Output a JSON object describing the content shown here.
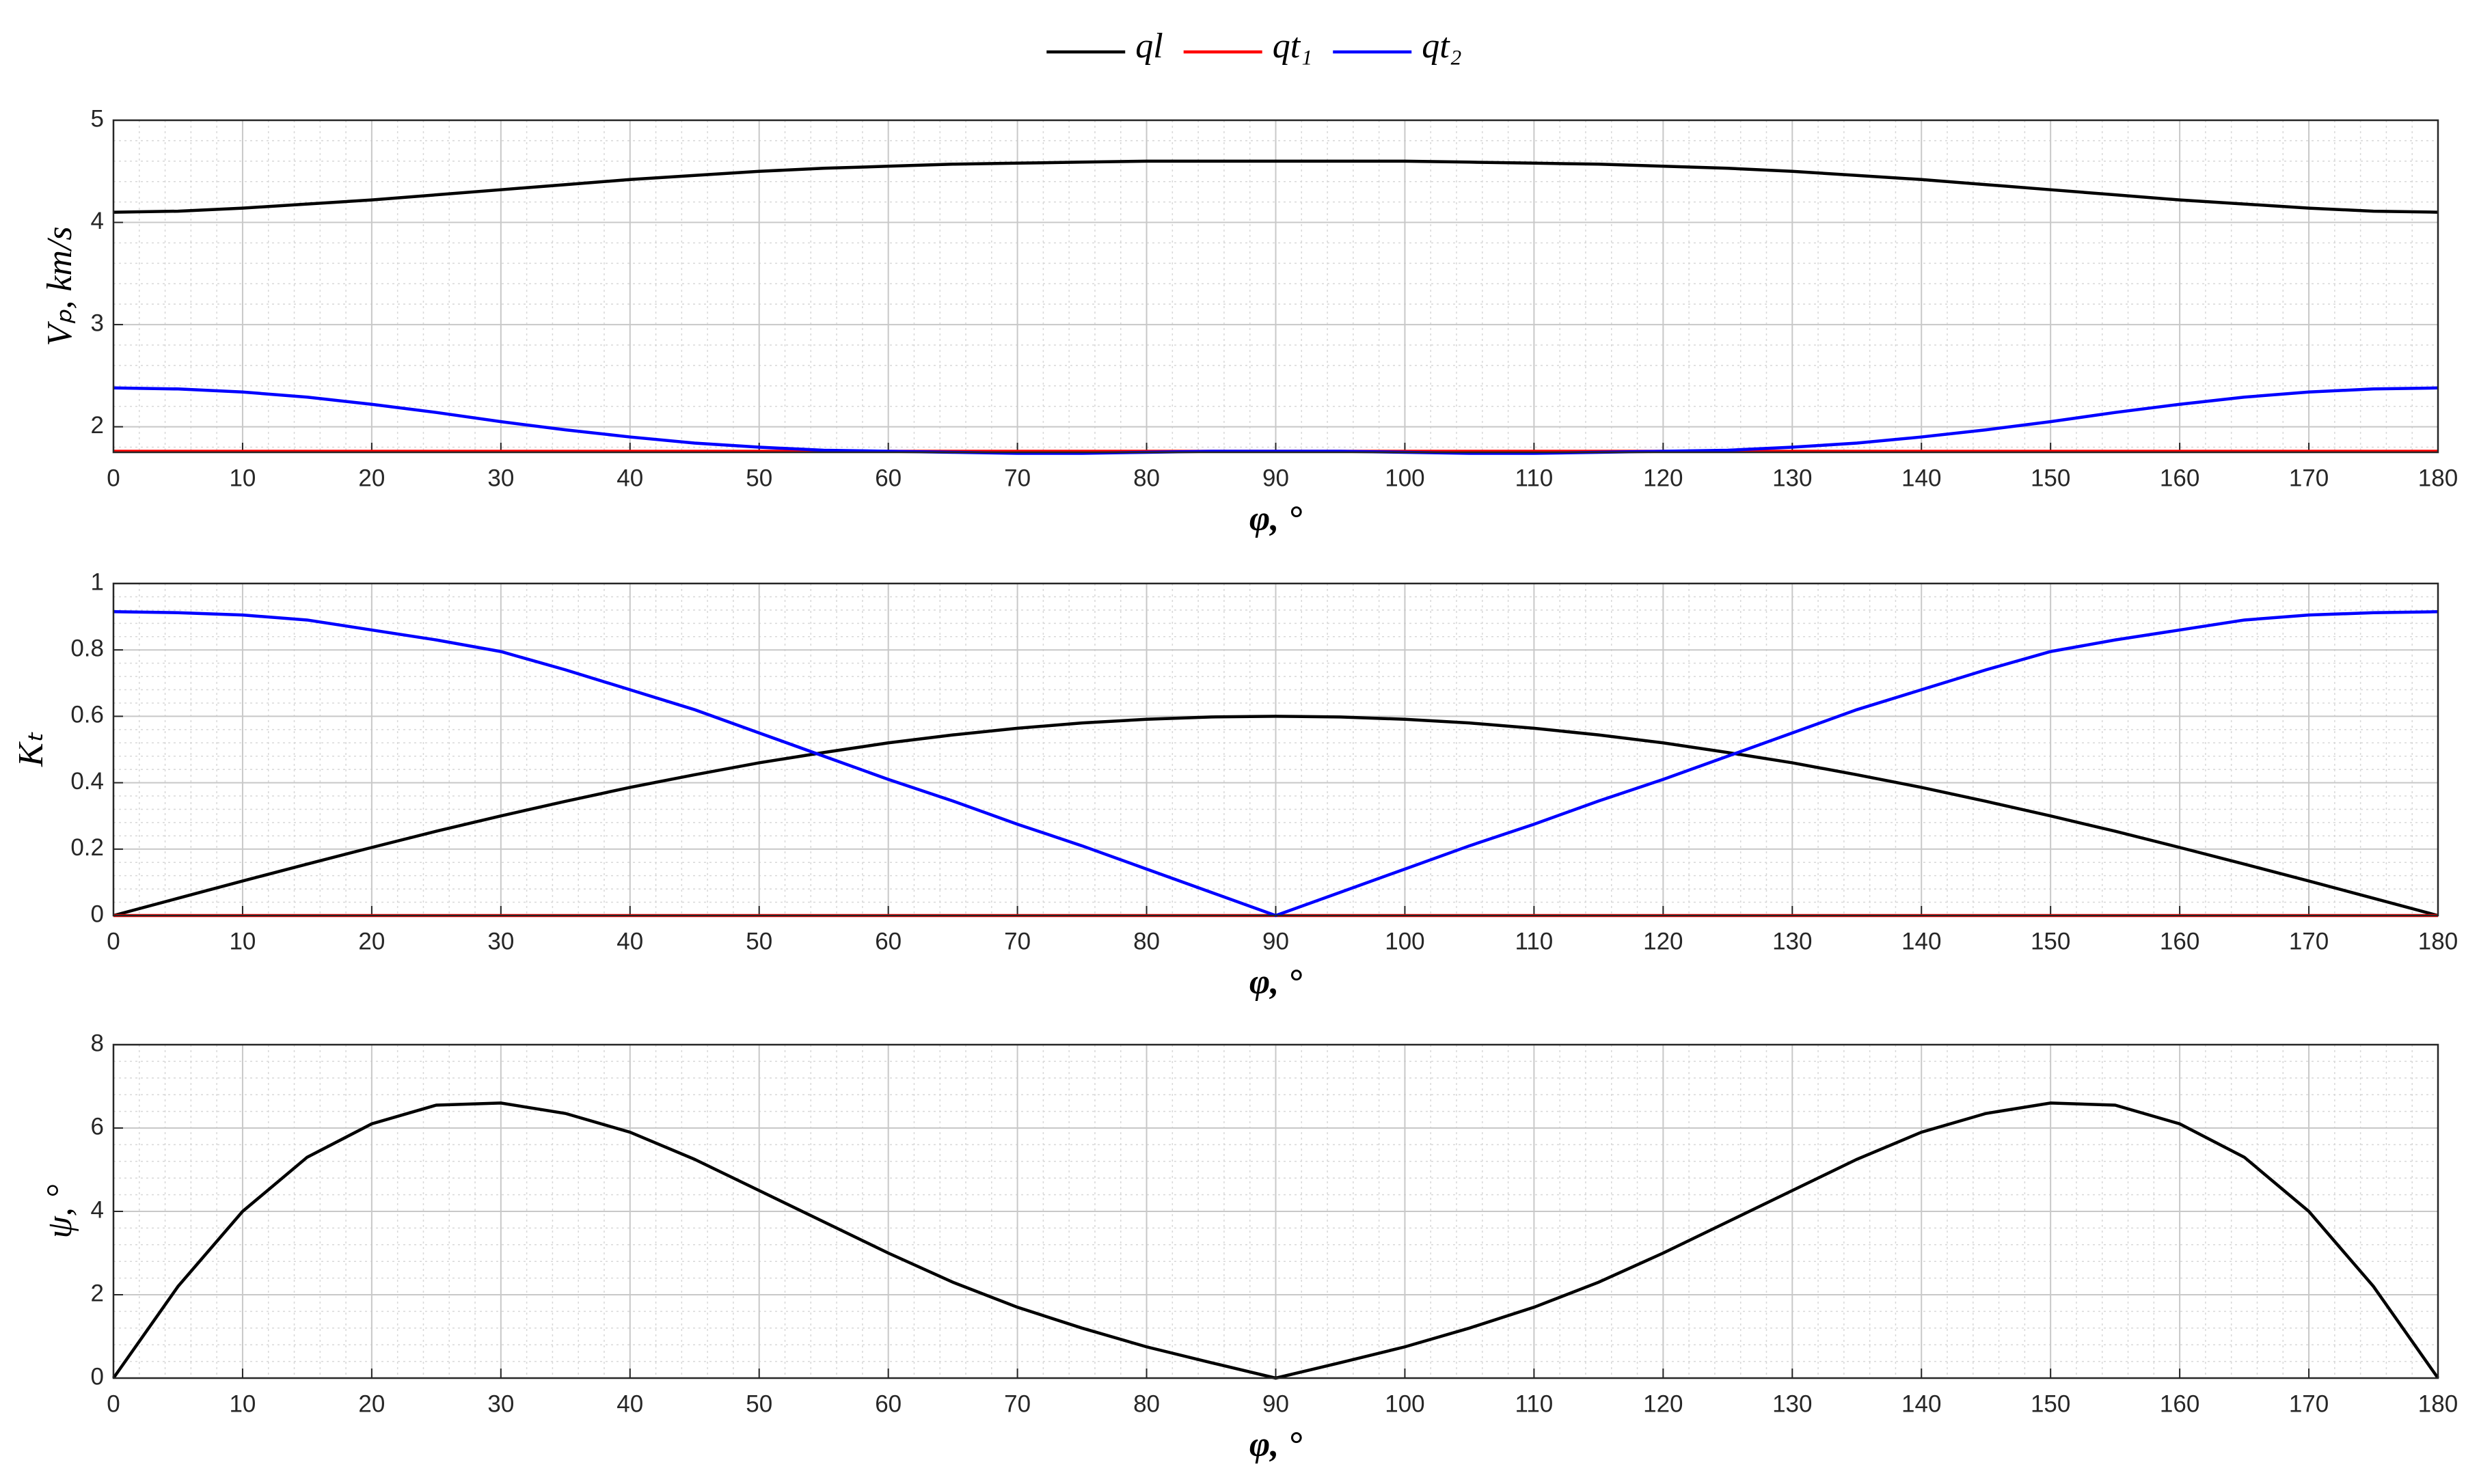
{
  "chart_data": [
    {
      "type": "line",
      "xlabel": "φ, °",
      "ylabel": "Vₚ, km/s",
      "x": [
        0,
        5,
        10,
        15,
        20,
        25,
        30,
        35,
        40,
        45,
        50,
        55,
        60,
        65,
        70,
        75,
        80,
        85,
        90,
        95,
        100,
        105,
        110,
        115,
        120,
        125,
        130,
        135,
        140,
        145,
        150,
        155,
        160,
        165,
        170,
        175,
        180
      ],
      "series": [
        {
          "name": "ql",
          "color": "#000000",
          "values": [
            4.1,
            4.11,
            4.14,
            4.18,
            4.22,
            4.27,
            4.32,
            4.37,
            4.42,
            4.46,
            4.5,
            4.53,
            4.55,
            4.57,
            4.58,
            4.59,
            4.6,
            4.6,
            4.6,
            4.6,
            4.6,
            4.59,
            4.58,
            4.57,
            4.55,
            4.53,
            4.5,
            4.46,
            4.42,
            4.37,
            4.32,
            4.27,
            4.22,
            4.18,
            4.14,
            4.11,
            4.1
          ]
        },
        {
          "name": "qt₁",
          "color": "#ff0000",
          "values": [
            1.76,
            1.76,
            1.76,
            1.76,
            1.76,
            1.76,
            1.76,
            1.76,
            1.76,
            1.76,
            1.76,
            1.76,
            1.76,
            1.76,
            1.76,
            1.76,
            1.76,
            1.76,
            1.76,
            1.76,
            1.76,
            1.76,
            1.76,
            1.76,
            1.76,
            1.76,
            1.76,
            1.76,
            1.76,
            1.76,
            1.76,
            1.76,
            1.76,
            1.76,
            1.76,
            1.76,
            1.76
          ]
        },
        {
          "name": "qt₂",
          "color": "#0000ff",
          "values": [
            2.38,
            2.37,
            2.34,
            2.29,
            2.22,
            2.14,
            2.05,
            1.97,
            1.9,
            1.84,
            1.8,
            1.77,
            1.76,
            1.75,
            1.74,
            1.74,
            1.75,
            1.76,
            1.76,
            1.76,
            1.75,
            1.74,
            1.74,
            1.75,
            1.76,
            1.77,
            1.8,
            1.84,
            1.9,
            1.97,
            2.05,
            2.14,
            2.22,
            2.29,
            2.34,
            2.37,
            2.38
          ]
        }
      ],
      "xlim": [
        0,
        180
      ],
      "xticks": [
        0,
        10,
        20,
        30,
        40,
        50,
        60,
        70,
        80,
        90,
        100,
        110,
        120,
        130,
        140,
        150,
        160,
        170,
        180
      ],
      "ylim": [
        1.75,
        5
      ],
      "yticks": [
        2,
        3,
        4,
        5
      ],
      "grid": true,
      "minor_grid": true,
      "legend": "top"
    },
    {
      "type": "line",
      "xlabel": "φ, °",
      "ylabel": "Kₜ",
      "x": [
        0,
        5,
        10,
        15,
        20,
        25,
        30,
        35,
        40,
        45,
        50,
        55,
        60,
        65,
        70,
        75,
        80,
        85,
        90,
        95,
        100,
        105,
        110,
        115,
        120,
        125,
        130,
        135,
        140,
        145,
        150,
        155,
        160,
        165,
        170,
        175,
        180
      ],
      "series": [
        {
          "color": "#000000",
          "values": [
            0,
            0.052,
            0.104,
            0.155,
            0.205,
            0.254,
            0.3,
            0.344,
            0.386,
            0.424,
            0.46,
            0.491,
            0.52,
            0.544,
            0.564,
            0.58,
            0.591,
            0.598,
            0.6,
            0.598,
            0.591,
            0.58,
            0.564,
            0.544,
            0.52,
            0.491,
            0.46,
            0.424,
            0.386,
            0.344,
            0.3,
            0.254,
            0.205,
            0.155,
            0.104,
            0.052,
            0
          ]
        },
        {
          "color": "#ff0000",
          "values": [
            0,
            0,
            0,
            0,
            0,
            0,
            0,
            0,
            0,
            0,
            0,
            0,
            0,
            0,
            0,
            0,
            0,
            0,
            0,
            0,
            0,
            0,
            0,
            0,
            0,
            0,
            0,
            0,
            0,
            0,
            0,
            0,
            0,
            0,
            0,
            0,
            0
          ]
        },
        {
          "color": "#0000ff",
          "values": [
            0.915,
            0.912,
            0.905,
            0.89,
            0.86,
            0.83,
            0.795,
            0.74,
            0.68,
            0.62,
            0.55,
            0.48,
            0.41,
            0.345,
            0.275,
            0.21,
            0.14,
            0.07,
            0,
            0.07,
            0.14,
            0.21,
            0.275,
            0.345,
            0.41,
            0.48,
            0.55,
            0.62,
            0.68,
            0.74,
            0.795,
            0.83,
            0.86,
            0.89,
            0.905,
            0.912,
            0.915
          ]
        }
      ],
      "xlim": [
        0,
        180
      ],
      "xticks": [
        0,
        10,
        20,
        30,
        40,
        50,
        60,
        70,
        80,
        90,
        100,
        110,
        120,
        130,
        140,
        150,
        160,
        170,
        180
      ],
      "ylim": [
        0,
        1
      ],
      "yticks": [
        0,
        0.2,
        0.4,
        0.6,
        0.8,
        1
      ],
      "grid": true,
      "minor_grid": true
    },
    {
      "type": "line",
      "xlabel": "φ, °",
      "ylabel": "ψ, °",
      "x": [
        0,
        5,
        10,
        15,
        20,
        25,
        30,
        35,
        40,
        45,
        50,
        55,
        60,
        65,
        70,
        75,
        80,
        85,
        90,
        95,
        100,
        105,
        110,
        115,
        120,
        125,
        130,
        135,
        140,
        145,
        150,
        155,
        160,
        165,
        170,
        175,
        180
      ],
      "series": [
        {
          "color": "#000000",
          "values": [
            0,
            2.2,
            4.0,
            5.3,
            6.1,
            6.55,
            6.6,
            6.35,
            5.9,
            5.25,
            4.5,
            3.75,
            3.0,
            2.3,
            1.7,
            1.2,
            0.75,
            0.37,
            0,
            0.37,
            0.75,
            1.2,
            1.7,
            2.3,
            3.0,
            3.75,
            4.5,
            5.25,
            5.9,
            6.35,
            6.6,
            6.55,
            6.1,
            5.3,
            4.0,
            2.2,
            0
          ]
        }
      ],
      "xlim": [
        0,
        180
      ],
      "xticks": [
        0,
        10,
        20,
        30,
        40,
        50,
        60,
        70,
        80,
        90,
        100,
        110,
        120,
        130,
        140,
        150,
        160,
        170,
        180
      ],
      "ylim": [
        0,
        8
      ],
      "yticks": [
        0,
        2,
        4,
        6,
        8
      ],
      "grid": true,
      "minor_grid": true
    }
  ]
}
